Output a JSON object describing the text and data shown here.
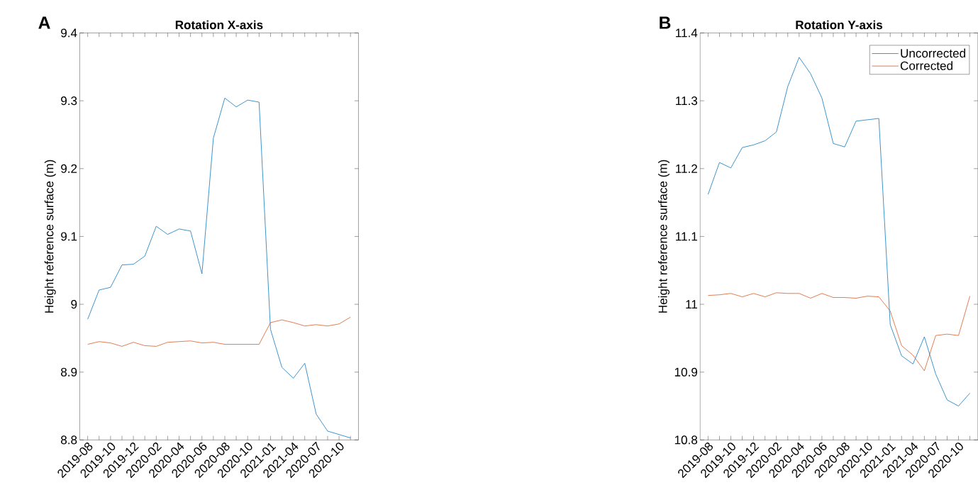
{
  "chart_data": [
    {
      "type": "line",
      "title": "Rotation X-axis",
      "ylabel": "Height reference surface (m)",
      "annotations": [
        "A"
      ],
      "categories": [
        "2019-08",
        null,
        "2019-10",
        null,
        "2019-12",
        null,
        "2020-02",
        null,
        "2020-04",
        null,
        "2020-06",
        null,
        "2020-08",
        null,
        "2020-10",
        null,
        "2021-01",
        null,
        "2021-04",
        null,
        "2020-07",
        null,
        "2020-10",
        null
      ],
      "series": [
        {
          "color": "#0072bd",
          "values": [
            8.978,
            9.021,
            9.025,
            9.058,
            9.059,
            9.071,
            9.115,
            9.103,
            9.111,
            9.108,
            9.045,
            9.245,
            9.304,
            9.291,
            9.301,
            9.298,
            8.963,
            8.907,
            8.891,
            8.913,
            8.838,
            8.813,
            8.808,
            8.803
          ]
        },
        {
          "color": "#d95319",
          "values": [
            8.941,
            8.945,
            8.943,
            8.938,
            8.944,
            8.939,
            8.938,
            8.944,
            8.945,
            8.946,
            8.943,
            8.944,
            8.941,
            8.941,
            8.941,
            8.941,
            8.973,
            8.977,
            8.973,
            8.968,
            8.97,
            8.968,
            8.971,
            8.981
          ]
        }
      ],
      "ylim": [
        8.8,
        9.4
      ],
      "yticks": [
        8.8,
        8.9,
        {
          "value": 9,
          "label": "9"
        },
        9.1,
        9.2,
        9.3,
        9.4
      ],
      "grid": false,
      "line_style": "solid",
      "marker": "none"
    },
    {
      "type": "line",
      "title": "Rotation Y-axis",
      "ylabel": "Height reference surface (m)",
      "annotations": [
        "B"
      ],
      "categories": [
        "2019-08",
        null,
        "2019-10",
        null,
        "2019-12",
        null,
        "2020-02",
        null,
        "2020-04",
        null,
        "2020-06",
        null,
        "2020-08",
        null,
        "2020-10",
        null,
        "2021-01",
        null,
        "2021-04",
        null,
        "2020-07",
        null,
        "2020-10",
        null
      ],
      "series": [
        {
          "name": "Uncorrected",
          "color": "#0072bd",
          "values": [
            11.162,
            11.209,
            11.201,
            11.231,
            11.235,
            11.241,
            11.254,
            11.321,
            11.364,
            11.34,
            11.304,
            11.237,
            11.232,
            11.27,
            11.272,
            11.274,
            10.97,
            10.924,
            10.912,
            10.952,
            10.897,
            10.859,
            10.85,
            10.869
          ]
        },
        {
          "name": "Corrected",
          "color": "#d95319",
          "values": [
            11.013,
            11.014,
            11.016,
            11.011,
            11.016,
            11.011,
            11.017,
            11.016,
            11.016,
            11.009,
            11.016,
            11.01,
            11.01,
            11.009,
            11.012,
            11.011,
            10.99,
            10.939,
            10.925,
            10.902,
            10.954,
            10.956,
            10.954,
            11.012
          ]
        }
      ],
      "ylim": [
        10.8,
        11.4
      ],
      "yticks": [
        10.8,
        10.9,
        {
          "value": 11,
          "label": "11"
        },
        11.1,
        11.2,
        11.3,
        11.4
      ],
      "grid": false,
      "legend": "top right",
      "line_style": "solid",
      "marker": "none"
    }
  ]
}
